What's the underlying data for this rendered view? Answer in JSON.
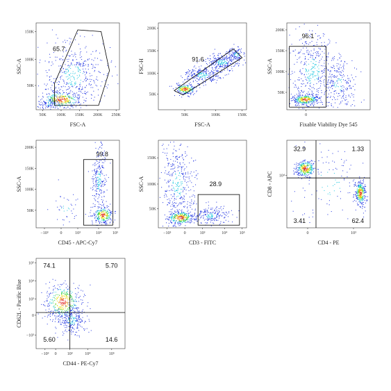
{
  "panels": [
    {
      "x_label": "FSC-A",
      "y_label": "SSC-A",
      "x_ticks": [
        "50K",
        "100K",
        "150K",
        "200K",
        "250K"
      ],
      "y_ticks": [
        "50K",
        "100K",
        "150K"
      ],
      "gates": [
        "65.7"
      ]
    },
    {
      "x_label": "FSC-A",
      "y_label": "FSC-H",
      "x_ticks": [
        "50K",
        "100K",
        "150K"
      ],
      "y_ticks": [
        "50K",
        "100K",
        "150K",
        "200K"
      ],
      "gates": [
        "91.6"
      ]
    },
    {
      "x_label": "Fixable Viability Dye 545",
      "y_label": "SSC-A",
      "x_ticks": [
        "0"
      ],
      "y_ticks": [
        "50K",
        "100K",
        "150K",
        "200K"
      ],
      "gates": [
        "96.1"
      ]
    },
    {
      "x_label": "CD45 - APC-Cy7",
      "y_label": "SSC-A",
      "x_ticks": [
        "−10³",
        "0",
        "10³",
        "10⁴",
        "10⁵"
      ],
      "y_ticks": [
        "50K",
        "100K",
        "150K",
        "200K"
      ],
      "gates": [
        "99.8"
      ]
    },
    {
      "x_label": "CD3 - FITC",
      "y_label": "SSC-A",
      "x_ticks": [
        "−10³",
        "0",
        "10³",
        "10⁴",
        "10⁵"
      ],
      "y_ticks": [
        "50K",
        "100K",
        "150K"
      ],
      "gates": [
        "28.9"
      ]
    },
    {
      "x_label": "CD4 - PE",
      "y_label": "CD8 - APC",
      "x_ticks": [
        "0",
        "10³"
      ],
      "y_ticks": [
        "10⁴"
      ],
      "gates": [
        "32.9",
        "1.33",
        "3.41",
        "62.4"
      ]
    },
    {
      "x_label": "CD44 - PE-Cy7",
      "y_label": "CD62L - Pacific Blue",
      "x_ticks": [
        "−10³",
        "0",
        "10³",
        "10⁴",
        "10⁵"
      ],
      "y_ticks": [
        "10⁵",
        "10⁴",
        "10³",
        "0",
        "−10³"
      ],
      "gates": [
        "74.1",
        "5.70",
        "5.60",
        "14.6"
      ]
    }
  ]
}
